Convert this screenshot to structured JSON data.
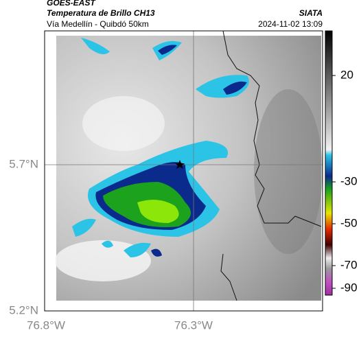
{
  "header": {
    "source": "GOES-EAST",
    "title": "Temperatura de Brillo CH13",
    "org": "SIATA",
    "subtitle": "Vía Medellín - Quibdó 50km",
    "datetime": "2024-11-02 13:09"
  },
  "map": {
    "lat_labels": [
      "5.7°N",
      "5.2°N"
    ],
    "lon_labels": [
      "76.8°W",
      "76.3°W"
    ]
  },
  "colorbar": {
    "tick_labels": [
      "20",
      "-30",
      "-50",
      "-70",
      "-90"
    ]
  }
}
